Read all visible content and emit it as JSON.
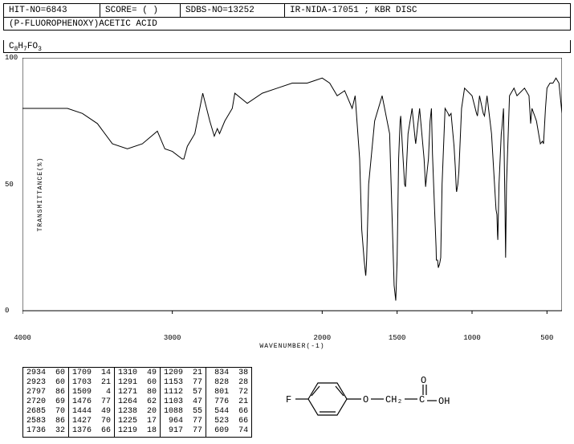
{
  "header": {
    "hit_no": "HIT-NO=6843",
    "score": "SCORE=  ( )",
    "sdbs_no": "SDBS-NO=13252",
    "ir_info": "IR-NIDA-17051 ; KBR DISC",
    "compound_name": "(P-FLUOROPHENOXY)ACETIC ACID",
    "formula_parts": [
      "C",
      "8",
      "H",
      "7",
      "F",
      "O",
      "3"
    ]
  },
  "chart": {
    "type": "line",
    "xlabel": "WAVENUMBER(-1)",
    "ylabel": "TRANSMITTANCE(%)",
    "background_color": "#ffffff",
    "line_color": "#000000",
    "line_width": 1,
    "xlim": [
      4000,
      400
    ],
    "ylim": [
      0,
      100
    ],
    "xticks": [
      4000,
      3000,
      2000,
      1500,
      1000,
      500
    ],
    "yticks": [
      0,
      50,
      100
    ],
    "spectrum": [
      [
        4000,
        80
      ],
      [
        3900,
        80
      ],
      [
        3800,
        80
      ],
      [
        3700,
        80
      ],
      [
        3600,
        78
      ],
      [
        3500,
        74
      ],
      [
        3400,
        66
      ],
      [
        3300,
        64
      ],
      [
        3200,
        66
      ],
      [
        3100,
        71
      ],
      [
        3050,
        64
      ],
      [
        3000,
        63
      ],
      [
        2934,
        60
      ],
      [
        2923,
        60
      ],
      [
        2900,
        65
      ],
      [
        2850,
        70
      ],
      [
        2797,
        86
      ],
      [
        2750,
        75
      ],
      [
        2720,
        69
      ],
      [
        2700,
        72
      ],
      [
        2685,
        70
      ],
      [
        2650,
        75
      ],
      [
        2600,
        80
      ],
      [
        2583,
        86
      ],
      [
        2500,
        82
      ],
      [
        2400,
        86
      ],
      [
        2300,
        88
      ],
      [
        2200,
        90
      ],
      [
        2100,
        90
      ],
      [
        2050,
        91
      ],
      [
        2000,
        92
      ],
      [
        1950,
        90
      ],
      [
        1900,
        85
      ],
      [
        1850,
        87
      ],
      [
        1800,
        80
      ],
      [
        1780,
        85
      ],
      [
        1750,
        60
      ],
      [
        1736,
        32
      ],
      [
        1720,
        20
      ],
      [
        1710,
        14
      ],
      [
        1709,
        14
      ],
      [
        1705,
        18
      ],
      [
        1703,
        21
      ],
      [
        1690,
        50
      ],
      [
        1650,
        75
      ],
      [
        1600,
        85
      ],
      [
        1550,
        70
      ],
      [
        1530,
        30
      ],
      [
        1520,
        10
      ],
      [
        1509,
        4
      ],
      [
        1500,
        20
      ],
      [
        1490,
        60
      ],
      [
        1480,
        75
      ],
      [
        1476,
        77
      ],
      [
        1460,
        60
      ],
      [
        1450,
        50
      ],
      [
        1444,
        49
      ],
      [
        1435,
        60
      ],
      [
        1427,
        70
      ],
      [
        1400,
        80
      ],
      [
        1380,
        68
      ],
      [
        1376,
        66
      ],
      [
        1350,
        80
      ],
      [
        1320,
        60
      ],
      [
        1310,
        49
      ],
      [
        1300,
        55
      ],
      [
        1291,
        60
      ],
      [
        1280,
        75
      ],
      [
        1271,
        80
      ],
      [
        1264,
        62
      ],
      [
        1250,
        40
      ],
      [
        1240,
        25
      ],
      [
        1238,
        20
      ],
      [
        1230,
        20
      ],
      [
        1225,
        17
      ],
      [
        1220,
        18
      ],
      [
        1219,
        18
      ],
      [
        1215,
        19
      ],
      [
        1212,
        20
      ],
      [
        1209,
        21
      ],
      [
        1200,
        50
      ],
      [
        1180,
        80
      ],
      [
        1160,
        78
      ],
      [
        1153,
        77
      ],
      [
        1140,
        78
      ],
      [
        1120,
        65
      ],
      [
        1112,
        57
      ],
      [
        1105,
        48
      ],
      [
        1103,
        47
      ],
      [
        1095,
        50
      ],
      [
        1088,
        55
      ],
      [
        1070,
        80
      ],
      [
        1050,
        88
      ],
      [
        1000,
        85
      ],
      [
        970,
        78
      ],
      [
        964,
        77
      ],
      [
        950,
        85
      ],
      [
        925,
        78
      ],
      [
        917,
        77
      ],
      [
        900,
        85
      ],
      [
        870,
        70
      ],
      [
        850,
        50
      ],
      [
        840,
        40
      ],
      [
        834,
        38
      ],
      [
        830,
        30
      ],
      [
        828,
        28
      ],
      [
        820,
        50
      ],
      [
        805,
        70
      ],
      [
        801,
        72
      ],
      [
        790,
        80
      ],
      [
        780,
        40
      ],
      [
        776,
        21
      ],
      [
        770,
        50
      ],
      [
        750,
        85
      ],
      [
        720,
        88
      ],
      [
        700,
        85
      ],
      [
        650,
        88
      ],
      [
        620,
        85
      ],
      [
        609,
        74
      ],
      [
        600,
        80
      ],
      [
        570,
        75
      ],
      [
        550,
        68
      ],
      [
        544,
        66
      ],
      [
        530,
        67
      ],
      [
        523,
        66
      ],
      [
        510,
        80
      ],
      [
        500,
        88
      ],
      [
        480,
        90
      ],
      [
        460,
        90
      ],
      [
        440,
        92
      ],
      [
        420,
        90
      ],
      [
        400,
        78
      ]
    ]
  },
  "peak_columns": [
    [
      [
        "2934",
        "60"
      ],
      [
        "2923",
        "60"
      ],
      [
        "2797",
        "86"
      ],
      [
        "2720",
        "69"
      ],
      [
        "2685",
        "70"
      ],
      [
        "2583",
        "86"
      ],
      [
        "1736",
        "32"
      ]
    ],
    [
      [
        "1709",
        "14"
      ],
      [
        "1703",
        "21"
      ],
      [
        "1509",
        " 4"
      ],
      [
        "1476",
        "77"
      ],
      [
        "1444",
        "49"
      ],
      [
        "1427",
        "70"
      ],
      [
        "1376",
        "66"
      ]
    ],
    [
      [
        "1310",
        "49"
      ],
      [
        "1291",
        "60"
      ],
      [
        "1271",
        "80"
      ],
      [
        "1264",
        "62"
      ],
      [
        "1238",
        "20"
      ],
      [
        "1225",
        "17"
      ],
      [
        "1219",
        "18"
      ]
    ],
    [
      [
        "1209",
        "21"
      ],
      [
        "1153",
        "77"
      ],
      [
        "1112",
        "57"
      ],
      [
        "1103",
        "47"
      ],
      [
        "1088",
        "55"
      ],
      [
        " 964",
        "77"
      ],
      [
        " 917",
        "77"
      ]
    ],
    [
      [
        " 834",
        "38"
      ],
      [
        " 828",
        "28"
      ],
      [
        " 801",
        "72"
      ],
      [
        " 776",
        "21"
      ],
      [
        " 544",
        "66"
      ],
      [
        " 523",
        "66"
      ],
      [
        " 609",
        "74"
      ]
    ]
  ],
  "molecule": {
    "atoms": [
      "F",
      "O",
      "CH2",
      "C",
      "O",
      "OH"
    ],
    "label_F": "F",
    "label_O1": "O",
    "label_CH2": "CH₂",
    "label_C": "C",
    "label_O2": "O",
    "label_OH": "OH"
  }
}
